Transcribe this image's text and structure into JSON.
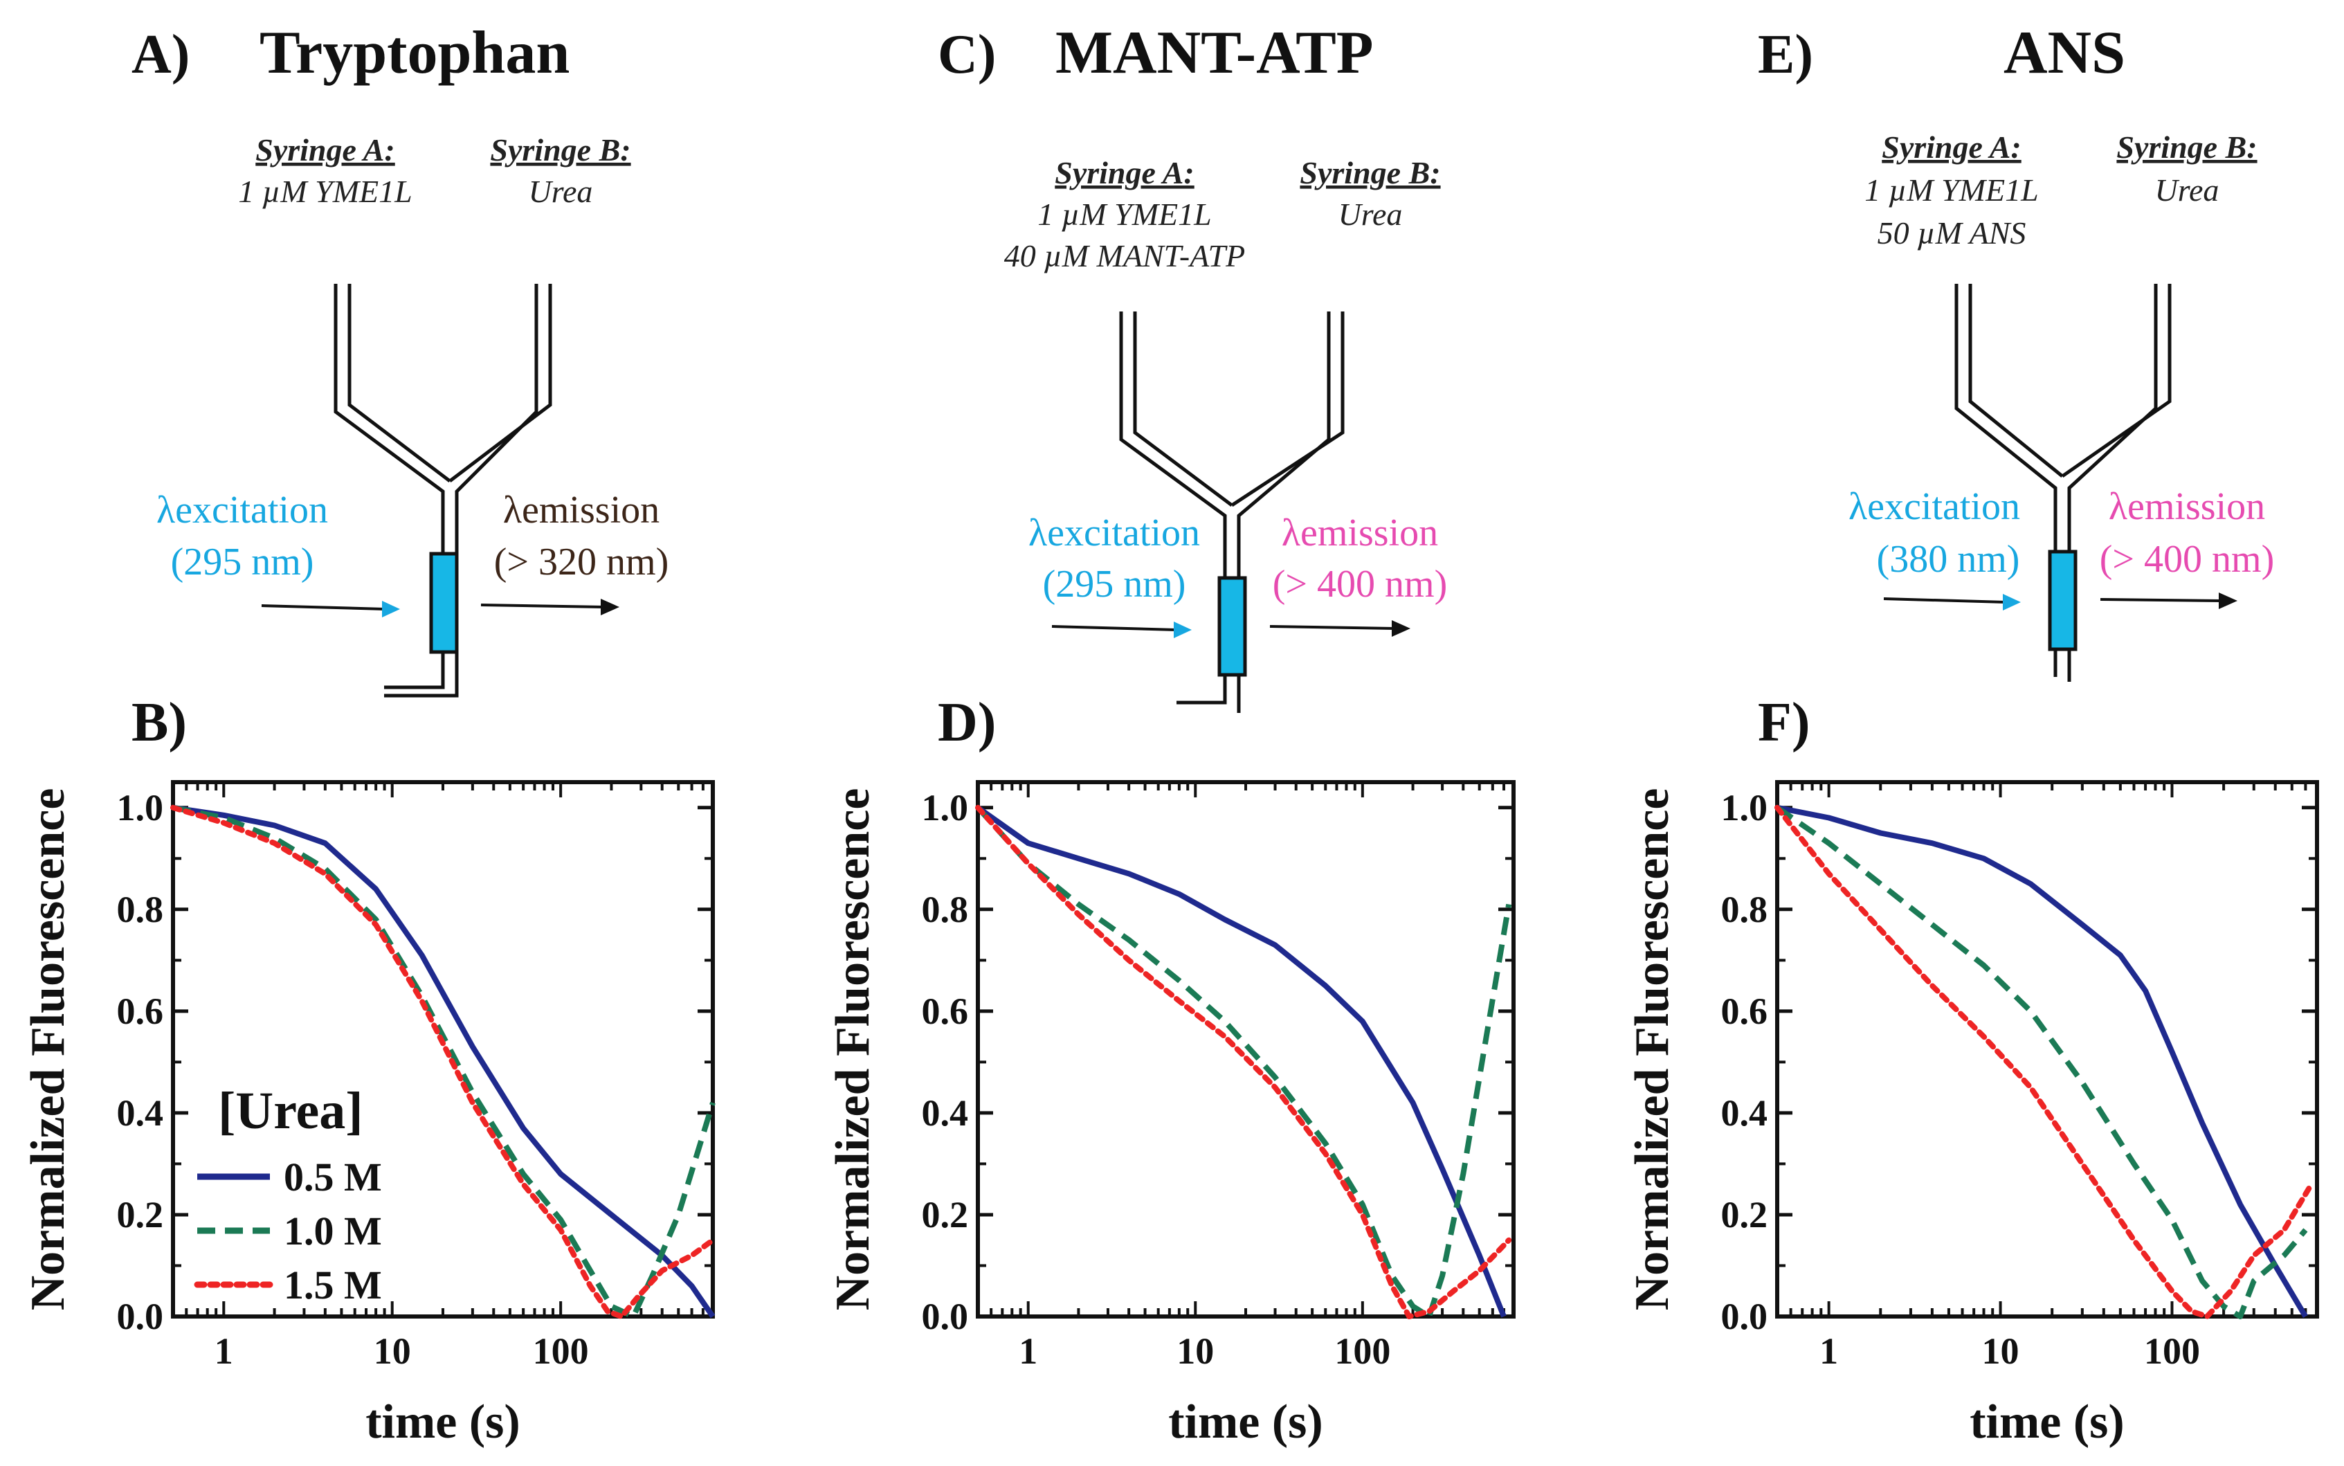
{
  "colors": {
    "blue": "#1f2a8e",
    "green": "#1b7a55",
    "red": "#ee2424",
    "cyan": "#17a7e0",
    "pink": "#e64bb0",
    "brown": "#3c2518",
    "cell": "#17b7e6"
  },
  "diagrams": [
    {
      "label": "A)",
      "title": "Tryptophan",
      "syringe_a": {
        "head": "Syringe A:",
        "lines": [
          "1 µM YME1L"
        ]
      },
      "syringe_b": {
        "head": "Syringe B:",
        "lines": [
          "Urea"
        ]
      },
      "excitation": {
        "name": "excitation",
        "value": "(295 nm)",
        "color": "#17a7e0"
      },
      "emission": {
        "name": "emission",
        "value": "(> 320 nm)",
        "color": "#3c2518"
      }
    },
    {
      "label": "C)",
      "title": "MANT-ATP",
      "syringe_a": {
        "head": "Syringe A:",
        "lines": [
          "1 µM YME1L",
          "40 µM MANT-ATP"
        ]
      },
      "syringe_b": {
        "head": "Syringe B:",
        "lines": [
          "Urea"
        ]
      },
      "excitation": {
        "name": "excitation",
        "value": "(295 nm)",
        "color": "#17a7e0"
      },
      "emission": {
        "name": "emission",
        "value": "(> 400 nm)",
        "color": "#e64bb0"
      }
    },
    {
      "label": "E)",
      "title": "ANS",
      "syringe_a": {
        "head": "Syringe A:",
        "lines": [
          "1 µM YME1L",
          "50 µM ANS"
        ]
      },
      "syringe_b": {
        "head": "Syringe B:",
        "lines": [
          "Urea"
        ]
      },
      "excitation": {
        "name": "excitation",
        "value": "(380 nm)",
        "color": "#17a7e0"
      },
      "emission": {
        "name": "emission",
        "value": "(> 400 nm)",
        "color": "#e64bb0"
      }
    }
  ],
  "chart_data": [
    {
      "label": "B)",
      "type": "line",
      "xlabel": "time (s)",
      "ylabel": "Normalized Fluorescence",
      "xscale": "log",
      "xlim": [
        0.5,
        800
      ],
      "ylim": [
        0,
        1.05
      ],
      "xticks": [
        1,
        10,
        100
      ],
      "xtick_labels": [
        "1",
        "10",
        "100"
      ],
      "yticks": [
        0,
        0.2,
        0.4,
        0.6,
        0.8,
        1.0
      ],
      "ytick_labels": [
        "0.0",
        "0.2",
        "0.4",
        "0.6",
        "0.8",
        "1.0"
      ],
      "legend": {
        "title": "[Urea]",
        "position": "lower-left"
      },
      "series": [
        {
          "name": "0.5 M",
          "color": "#1f2a8e",
          "style": "solid",
          "x": [
            0.5,
            1,
            2,
            4,
            8,
            15,
            30,
            60,
            100,
            200,
            400,
            600,
            800
          ],
          "y": [
            1.0,
            0.985,
            0.965,
            0.93,
            0.84,
            0.71,
            0.53,
            0.37,
            0.28,
            0.2,
            0.12,
            0.06,
            0.0
          ]
        },
        {
          "name": "1.0 M",
          "color": "#1b7a55",
          "style": "dashed",
          "x": [
            0.5,
            1,
            2,
            4,
            8,
            15,
            30,
            60,
            100,
            150,
            200,
            270,
            350,
            500,
            800
          ],
          "y": [
            1.0,
            0.98,
            0.94,
            0.88,
            0.78,
            0.63,
            0.44,
            0.28,
            0.19,
            0.09,
            0.02,
            0.0,
            0.08,
            0.2,
            0.42
          ]
        },
        {
          "name": "1.5 M",
          "color": "#ee2424",
          "style": "dotted",
          "x": [
            0.5,
            1,
            2,
            4,
            8,
            15,
            30,
            60,
            100,
            150,
            190,
            230,
            290,
            400,
            600,
            800
          ],
          "y": [
            1.0,
            0.97,
            0.93,
            0.87,
            0.77,
            0.62,
            0.42,
            0.26,
            0.17,
            0.06,
            0.01,
            0.0,
            0.04,
            0.09,
            0.12,
            0.15
          ]
        }
      ]
    },
    {
      "label": "D)",
      "type": "line",
      "xlabel": "time (s)",
      "ylabel": "Normalized Fluorescence",
      "xscale": "log",
      "xlim": [
        0.5,
        800
      ],
      "ylim": [
        0,
        1.05
      ],
      "xticks": [
        1,
        10,
        100
      ],
      "xtick_labels": [
        "1",
        "10",
        "100"
      ],
      "yticks": [
        0,
        0.2,
        0.4,
        0.6,
        0.8,
        1.0
      ],
      "ytick_labels": [
        "0.0",
        "0.2",
        "0.4",
        "0.6",
        "0.8",
        "1.0"
      ],
      "series": [
        {
          "name": "0.5 M",
          "color": "#1f2a8e",
          "style": "solid",
          "x": [
            0.5,
            1,
            2,
            4,
            8,
            15,
            30,
            60,
            100,
            200,
            300,
            500,
            700
          ],
          "y": [
            1.0,
            0.93,
            0.9,
            0.87,
            0.83,
            0.78,
            0.73,
            0.65,
            0.58,
            0.42,
            0.29,
            0.12,
            0.0
          ]
        },
        {
          "name": "1.0 M",
          "color": "#1b7a55",
          "style": "dashed",
          "x": [
            0.5,
            1,
            2,
            4,
            8,
            15,
            30,
            60,
            100,
            150,
            200,
            250,
            300,
            400,
            550,
            750
          ],
          "y": [
            1.0,
            0.89,
            0.81,
            0.74,
            0.66,
            0.58,
            0.47,
            0.34,
            0.22,
            0.08,
            0.02,
            0.0,
            0.08,
            0.28,
            0.55,
            0.81
          ]
        },
        {
          "name": "1.5 M",
          "color": "#ee2424",
          "style": "dotted",
          "x": [
            0.5,
            1,
            2,
            4,
            8,
            15,
            30,
            60,
            100,
            150,
            190,
            250,
            350,
            500,
            750
          ],
          "y": [
            1.0,
            0.89,
            0.79,
            0.7,
            0.62,
            0.55,
            0.45,
            0.32,
            0.2,
            0.06,
            0.0,
            0.01,
            0.05,
            0.09,
            0.15
          ]
        }
      ]
    },
    {
      "label": "F)",
      "type": "line",
      "xlabel": "time (s)",
      "ylabel": "Normalized Fluorescence",
      "xscale": "log",
      "xlim": [
        0.5,
        700
      ],
      "ylim": [
        0,
        1.05
      ],
      "xticks": [
        1,
        10,
        100
      ],
      "xtick_labels": [
        "1",
        "10",
        "100"
      ],
      "yticks": [
        0,
        0.2,
        0.4,
        0.6,
        0.8,
        1.0
      ],
      "ytick_labels": [
        "0.0",
        "0.2",
        "0.4",
        "0.6",
        "0.8",
        "1.0"
      ],
      "series": [
        {
          "name": "0.5 M",
          "color": "#1f2a8e",
          "style": "solid",
          "x": [
            0.5,
            1,
            2,
            4,
            8,
            15,
            30,
            50,
            70,
            100,
            150,
            250,
            400,
            600
          ],
          "y": [
            1.0,
            0.98,
            0.95,
            0.93,
            0.9,
            0.85,
            0.77,
            0.71,
            0.64,
            0.52,
            0.38,
            0.22,
            0.1,
            0.0
          ]
        },
        {
          "name": "1.0 M",
          "color": "#1b7a55",
          "style": "dashed",
          "x": [
            0.5,
            1,
            2,
            4,
            8,
            15,
            30,
            60,
            100,
            150,
            200,
            250,
            300,
            450,
            600
          ],
          "y": [
            1.0,
            0.93,
            0.85,
            0.77,
            0.69,
            0.6,
            0.46,
            0.3,
            0.19,
            0.07,
            0.02,
            0.0,
            0.07,
            0.12,
            0.17
          ]
        },
        {
          "name": "1.5 M",
          "color": "#ee2424",
          "style": "dotted",
          "x": [
            0.5,
            1,
            2,
            4,
            8,
            15,
            30,
            60,
            100,
            130,
            160,
            220,
            300,
            450,
            650
          ],
          "y": [
            1.0,
            0.87,
            0.76,
            0.65,
            0.55,
            0.45,
            0.3,
            0.15,
            0.05,
            0.01,
            0.0,
            0.05,
            0.12,
            0.17,
            0.26
          ]
        }
      ]
    }
  ]
}
